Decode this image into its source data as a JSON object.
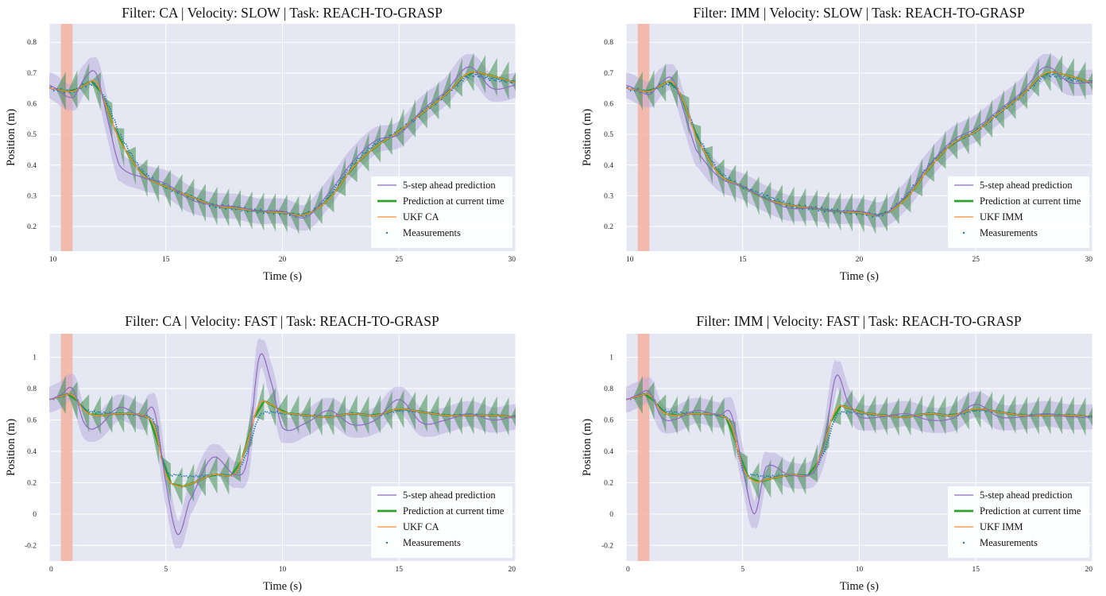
{
  "colors": {
    "plot_bg": "#e5e8f3",
    "grid": "#ffffff",
    "prediction_5step": "#8c6bc0",
    "prediction_band": "#b3a4dc",
    "current_prediction": "#2ca02c",
    "current_band": "#3f8f4f",
    "ukf": "#ff8c2e",
    "measurements": "#1f77b4",
    "highlight": "#f4b2a0"
  },
  "chart_data": [
    {
      "type": "line",
      "title": "Filter: CA  |  Velocity: SLOW  |  Task: REACH-TO-GRASP",
      "xlabel": "Time (s)",
      "ylabel": "Position (m)",
      "xlim": [
        10,
        30
      ],
      "ylim": [
        0.12,
        0.86
      ],
      "xticks": [
        "10",
        "15",
        "20",
        "25",
        "30"
      ],
      "yticks": [
        "0.2",
        "0.3",
        "0.4",
        "0.5",
        "0.6",
        "0.7",
        "0.8"
      ],
      "grid": true,
      "legend_position": "bottom-right",
      "highlight_x": [
        10.5,
        11.0
      ],
      "legend": [
        "5-step ahead prediction",
        "Prediction at current time",
        "UKF CA",
        "Measurements"
      ],
      "series": [
        {
          "name": "Measurements",
          "x": [
            10,
            11,
            11.5,
            12,
            12.5,
            13,
            14,
            15,
            16,
            17,
            18,
            19,
            20,
            21,
            22,
            23,
            24,
            25,
            26,
            27,
            28,
            29,
            30
          ],
          "y": [
            0.65,
            0.64,
            0.66,
            0.66,
            0.6,
            0.5,
            0.38,
            0.33,
            0.3,
            0.27,
            0.26,
            0.25,
            0.245,
            0.24,
            0.3,
            0.4,
            0.47,
            0.51,
            0.57,
            0.63,
            0.69,
            0.68,
            0.67
          ]
        },
        {
          "name": "UKF CA",
          "x": [
            10,
            11,
            11.5,
            12,
            12.5,
            13,
            14,
            15,
            16,
            17,
            18,
            19,
            20,
            21,
            22,
            23,
            24,
            25,
            26,
            27,
            28,
            29,
            30
          ],
          "y": [
            0.65,
            0.64,
            0.66,
            0.67,
            0.58,
            0.48,
            0.37,
            0.33,
            0.3,
            0.27,
            0.26,
            0.25,
            0.245,
            0.24,
            0.29,
            0.39,
            0.46,
            0.51,
            0.57,
            0.63,
            0.7,
            0.69,
            0.67
          ]
        },
        {
          "name": "5-step ahead prediction",
          "x": [
            10,
            11,
            11.5,
            12,
            12.5,
            13,
            14,
            15,
            16,
            17,
            18,
            19,
            20,
            21,
            22,
            23,
            24,
            25,
            26,
            27,
            28,
            29,
            30
          ],
          "y": [
            0.66,
            0.62,
            0.68,
            0.7,
            0.55,
            0.4,
            0.36,
            0.34,
            0.29,
            0.27,
            0.265,
            0.25,
            0.25,
            0.23,
            0.31,
            0.41,
            0.48,
            0.5,
            0.58,
            0.64,
            0.72,
            0.65,
            0.66
          ]
        }
      ]
    },
    {
      "type": "line",
      "title": "Filter: IMM  |  Velocity: SLOW  |  Task: REACH-TO-GRASP",
      "xlabel": "Time (s)",
      "ylabel": "Position (m)",
      "xlim": [
        10,
        30
      ],
      "ylim": [
        0.12,
        0.86
      ],
      "xticks": [
        "10",
        "15",
        "20",
        "25",
        "30"
      ],
      "yticks": [
        "0.2",
        "0.3",
        "0.4",
        "0.5",
        "0.6",
        "0.7",
        "0.8"
      ],
      "grid": true,
      "legend_position": "bottom-right",
      "highlight_x": [
        10.5,
        11.0
      ],
      "legend": [
        "5-step ahead prediction",
        "Prediction at current time",
        "UKF IMM",
        "Measurements"
      ],
      "series": [
        {
          "name": "Measurements",
          "x": [
            10,
            11,
            11.5,
            12,
            12.5,
            13,
            14,
            15,
            16,
            17,
            18,
            19,
            20,
            21,
            22,
            23,
            24,
            25,
            26,
            27,
            28,
            29,
            30
          ],
          "y": [
            0.65,
            0.64,
            0.66,
            0.66,
            0.6,
            0.5,
            0.38,
            0.33,
            0.3,
            0.27,
            0.26,
            0.25,
            0.245,
            0.24,
            0.3,
            0.4,
            0.47,
            0.51,
            0.57,
            0.63,
            0.69,
            0.68,
            0.67
          ]
        },
        {
          "name": "UKF IMM",
          "x": [
            10,
            11,
            11.5,
            12,
            12.5,
            13,
            14,
            15,
            16,
            17,
            18,
            19,
            20,
            21,
            22,
            23,
            24,
            25,
            26,
            27,
            28,
            29,
            30
          ],
          "y": [
            0.65,
            0.64,
            0.66,
            0.67,
            0.6,
            0.49,
            0.37,
            0.33,
            0.29,
            0.27,
            0.26,
            0.25,
            0.245,
            0.24,
            0.29,
            0.39,
            0.47,
            0.51,
            0.57,
            0.63,
            0.7,
            0.69,
            0.67
          ]
        },
        {
          "name": "5-step ahead prediction",
          "x": [
            10,
            11,
            11.5,
            12,
            12.5,
            13,
            14,
            15,
            16,
            17,
            18,
            19,
            20,
            21,
            22,
            23,
            24,
            25,
            26,
            27,
            28,
            29,
            30
          ],
          "y": [
            0.66,
            0.63,
            0.67,
            0.68,
            0.57,
            0.45,
            0.36,
            0.33,
            0.29,
            0.26,
            0.26,
            0.25,
            0.25,
            0.24,
            0.3,
            0.4,
            0.48,
            0.52,
            0.58,
            0.64,
            0.72,
            0.67,
            0.67
          ]
        }
      ]
    },
    {
      "type": "line",
      "title": "Filter: CA  |  Velocity: FAST  |  Task: REACH-TO-GRASP",
      "xlabel": "Time (s)",
      "ylabel": "Position (m)",
      "xlim": [
        0,
        20
      ],
      "ylim": [
        -0.3,
        1.15
      ],
      "xticks": [
        "0",
        "5",
        "10",
        "15",
        "20"
      ],
      "yticks": [
        "-0.2",
        "0",
        "0.2",
        "0.4",
        "0.6",
        "0.8",
        "1"
      ],
      "grid": true,
      "legend_position": "bottom-right",
      "highlight_x": [
        0.5,
        1.0
      ],
      "legend": [
        "5-step ahead prediction",
        "Prediction at current time",
        "UKF CA",
        "Measurements"
      ],
      "series": [
        {
          "name": "Measurements",
          "x": [
            0,
            0.5,
            1,
            1.5,
            2,
            3,
            4,
            4.5,
            5,
            5.5,
            6,
            7,
            8,
            8.5,
            9,
            9.5,
            10,
            11,
            12,
            13,
            14,
            15,
            16,
            17,
            18,
            19,
            20
          ],
          "y": [
            0.73,
            0.75,
            0.76,
            0.67,
            0.65,
            0.64,
            0.63,
            0.58,
            0.28,
            0.25,
            0.24,
            0.25,
            0.26,
            0.4,
            0.62,
            0.65,
            0.64,
            0.63,
            0.62,
            0.64,
            0.63,
            0.66,
            0.65,
            0.63,
            0.63,
            0.63,
            0.62
          ]
        },
        {
          "name": "UKF CA",
          "x": [
            0,
            0.5,
            1,
            1.5,
            2,
            3,
            4,
            4.5,
            5,
            5.5,
            6,
            7,
            8,
            8.5,
            9,
            9.5,
            10,
            11,
            12,
            13,
            14,
            15,
            16,
            17,
            18,
            19,
            20
          ],
          "y": [
            0.73,
            0.75,
            0.76,
            0.66,
            0.63,
            0.64,
            0.63,
            0.56,
            0.25,
            0.18,
            0.19,
            0.25,
            0.26,
            0.46,
            0.7,
            0.7,
            0.65,
            0.63,
            0.62,
            0.64,
            0.63,
            0.67,
            0.65,
            0.63,
            0.63,
            0.63,
            0.62
          ]
        },
        {
          "name": "5-step ahead prediction",
          "x": [
            0,
            0.5,
            1,
            1.5,
            2,
            3,
            4,
            4.5,
            5,
            5.5,
            6,
            7,
            8,
            8.5,
            9,
            9.5,
            10,
            11,
            12,
            13,
            14,
            15,
            16,
            17,
            18,
            19,
            20
          ],
          "y": [
            0.73,
            0.76,
            0.8,
            0.58,
            0.55,
            0.68,
            0.62,
            0.66,
            0.2,
            -0.13,
            0.08,
            0.36,
            0.25,
            0.35,
            1.0,
            0.85,
            0.55,
            0.58,
            0.66,
            0.57,
            0.6,
            0.73,
            0.58,
            0.6,
            0.64,
            0.6,
            0.62
          ]
        }
      ]
    },
    {
      "type": "line",
      "title": "Filter: IMM  |  Velocity: FAST  |  Task: REACH-TO-GRASP",
      "xlabel": "Time (s)",
      "ylabel": "Position (m)",
      "xlim": [
        0,
        20
      ],
      "ylim": [
        -0.3,
        1.15
      ],
      "xticks": [
        "0",
        "5",
        "10",
        "15",
        "20"
      ],
      "yticks": [
        "-0.2",
        "0",
        "0.2",
        "0.4",
        "0.6",
        "0.8",
        "1"
      ],
      "grid": true,
      "legend_position": "bottom-right",
      "highlight_x": [
        0.5,
        1.0
      ],
      "legend": [
        "5-step ahead prediction",
        "Prediction at current time",
        "UKF IMM",
        "Measurements"
      ],
      "series": [
        {
          "name": "Measurements",
          "x": [
            0,
            0.5,
            1,
            1.5,
            2,
            3,
            4,
            4.5,
            5,
            5.5,
            6,
            7,
            8,
            8.5,
            9,
            9.5,
            10,
            11,
            12,
            13,
            14,
            15,
            16,
            17,
            18,
            19,
            20
          ],
          "y": [
            0.73,
            0.75,
            0.76,
            0.67,
            0.65,
            0.64,
            0.63,
            0.58,
            0.28,
            0.25,
            0.24,
            0.25,
            0.26,
            0.4,
            0.62,
            0.65,
            0.64,
            0.63,
            0.62,
            0.64,
            0.63,
            0.66,
            0.65,
            0.63,
            0.63,
            0.63,
            0.62
          ]
        },
        {
          "name": "UKF IMM",
          "x": [
            0,
            0.5,
            1,
            1.5,
            2,
            3,
            4,
            4.5,
            5,
            5.5,
            6,
            7,
            8,
            8.5,
            9,
            9.5,
            10,
            11,
            12,
            13,
            14,
            15,
            16,
            17,
            18,
            19,
            20
          ],
          "y": [
            0.73,
            0.75,
            0.76,
            0.66,
            0.63,
            0.64,
            0.63,
            0.57,
            0.3,
            0.21,
            0.22,
            0.25,
            0.26,
            0.45,
            0.67,
            0.68,
            0.65,
            0.63,
            0.62,
            0.64,
            0.63,
            0.67,
            0.65,
            0.63,
            0.63,
            0.63,
            0.62
          ]
        },
        {
          "name": "5-step ahead prediction",
          "x": [
            0,
            0.5,
            1,
            1.5,
            2,
            3,
            4,
            4.5,
            5,
            5.5,
            6,
            7,
            8,
            8.5,
            9,
            9.5,
            10,
            11,
            12,
            13,
            14,
            15,
            16,
            17,
            18,
            19,
            20
          ],
          "y": [
            0.73,
            0.76,
            0.78,
            0.62,
            0.6,
            0.66,
            0.63,
            0.64,
            0.3,
            0.0,
            0.3,
            0.25,
            0.26,
            0.45,
            0.88,
            0.72,
            0.62,
            0.62,
            0.64,
            0.6,
            0.61,
            0.7,
            0.62,
            0.62,
            0.64,
            0.62,
            0.62
          ]
        }
      ]
    }
  ]
}
